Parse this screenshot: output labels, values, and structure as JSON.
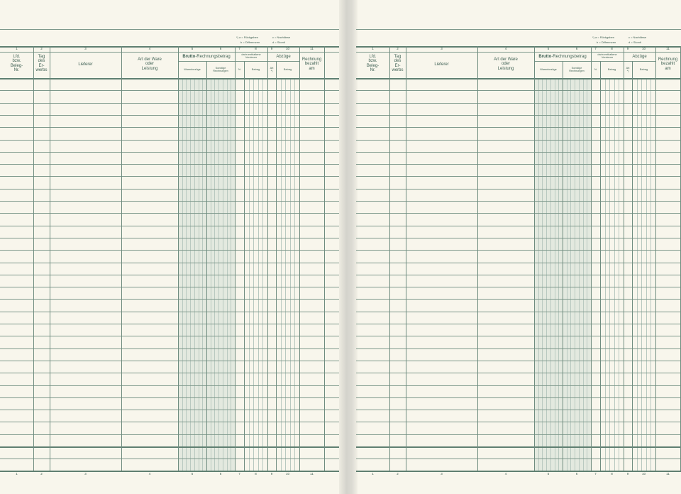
{
  "colors": {
    "ink": "#3d5f52",
    "line": "#6f8c7f",
    "shade": "#e3e9df",
    "paper": "#f8f6ec"
  },
  "footnote": {
    "a": "*) a = Rückgaben",
    "b": "b = Differenzen",
    "c": "c = Nachlässe",
    "d": "d = Skonti"
  },
  "column_numbers": [
    "1",
    "2",
    "3",
    "4",
    "5",
    "6",
    "7",
    "8",
    "9",
    "10",
    "11"
  ],
  "headers": {
    "col1": "Lfd.\nbzw.\nBeleg-\nNr.",
    "col2": "Tag\ndes\nEr-\nwerbs",
    "col3": "Lieferer",
    "col4": "Art der Ware\noder\nLeistung",
    "group56_bold": "Brutto",
    "group56_rest": "-Rechnungsbetrag",
    "col5": "Warenbezüge",
    "col6": "Sonstige\nRechnungen",
    "group78": "darin enthaltene\nVorsteuer",
    "col7": "%",
    "col8": "Betrag",
    "group910": "Abzüge",
    "col9": "Art\n*)",
    "col10": "Betrag",
    "col11": "Rechnung\nbezahlt\nam"
  },
  "pages": [
    "left",
    "right"
  ]
}
